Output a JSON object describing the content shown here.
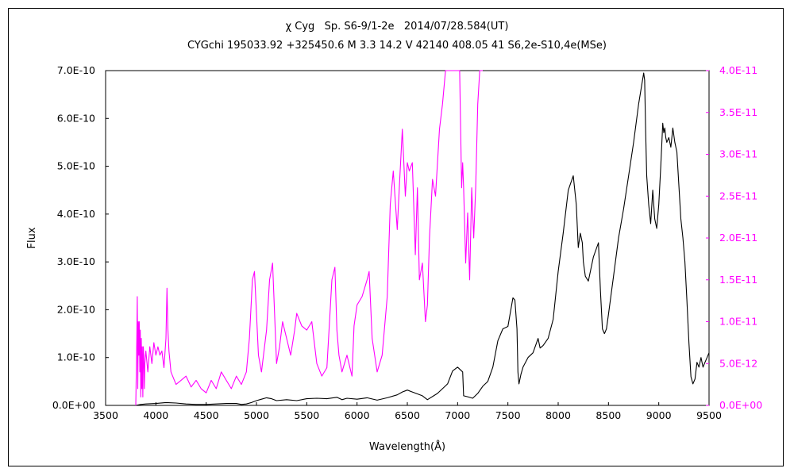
{
  "title_line1": "χ Cyg   Sp. S6-9/1-2e   2014/07/28.584(UT)",
  "title_line2": "CYGchi 195033.92 +325450.6 M 3.3 14.2 V 42140 408.05 41 S6,2e-S10,4e(MSe)",
  "chart_data": {
    "type": "line",
    "xlabel": "Wavelength(Å)",
    "ylabel": "Flux",
    "xlim": [
      3500,
      9500
    ],
    "ylim_left": [
      0,
      7e-10
    ],
    "ylim_right": [
      0,
      4e-11
    ],
    "grid": false,
    "x_ticks": [
      3500,
      4000,
      4500,
      5000,
      5500,
      6000,
      6500,
      7000,
      7500,
      8000,
      8500,
      9000,
      9500
    ],
    "x_tick_labels": [
      "3500",
      "4000",
      "4500",
      "5000",
      "5500",
      "6000",
      "6500",
      "7000",
      "7500",
      "8000",
      "8500",
      "9000",
      "9500"
    ],
    "y_left_ticks": [
      0,
      1e-10,
      2e-10,
      3e-10,
      4e-10,
      5e-10,
      6e-10,
      7e-10
    ],
    "y_left_tick_labels": [
      "0.0E+00",
      "1.0E-10",
      "2.0E-10",
      "3.0E-10",
      "4.0E-10",
      "5.0E-10",
      "6.0E-10",
      "7.0E-10"
    ],
    "y_right_ticks": [
      0,
      5e-12,
      1e-11,
      1.5e-11,
      2e-11,
      2.5e-11,
      3e-11,
      3.5e-11,
      4e-11
    ],
    "y_right_tick_labels": [
      "0.0E+00",
      "5.0E-12",
      "1.0E-11",
      "1.5E-11",
      "2.0E-11",
      "2.5E-11",
      "3.0E-11",
      "3.5E-11",
      "4.0E-11"
    ],
    "series": [
      {
        "axis": "left",
        "color": "#000000",
        "x": [
          3800,
          3850,
          3900,
          4000,
          4100,
          4200,
          4300,
          4400,
          4500,
          4600,
          4700,
          4800,
          4850,
          4900,
          4950,
          5000,
          5050,
          5100,
          5150,
          5200,
          5300,
          5400,
          5500,
          5600,
          5700,
          5800,
          5850,
          5900,
          6000,
          6100,
          6200,
          6300,
          6400,
          6450,
          6500,
          6550,
          6600,
          6650,
          6700,
          6800,
          6900,
          6950,
          7000,
          7050,
          7060,
          7100,
          7150,
          7200,
          7250,
          7300,
          7350,
          7400,
          7450,
          7500,
          7550,
          7570,
          7590,
          7600,
          7610,
          7630,
          7650,
          7700,
          7750,
          7800,
          7820,
          7850,
          7900,
          7950,
          8000,
          8050,
          8100,
          8150,
          8180,
          8200,
          8220,
          8240,
          8250,
          8270,
          8300,
          8350,
          8400,
          8420,
          8440,
          8460,
          8480,
          8500,
          8550,
          8600,
          8650,
          8700,
          8750,
          8800,
          8850,
          8860,
          8870,
          8880,
          8900,
          8920,
          8940,
          8960,
          8980,
          9000,
          9020,
          9040,
          9050,
          9060,
          9070,
          9080,
          9100,
          9120,
          9140,
          9160,
          9180,
          9200,
          9220,
          9240,
          9260,
          9280,
          9300,
          9320,
          9340,
          9360,
          9380,
          9400,
          9420,
          9440,
          9460,
          9480,
          9500
        ],
        "y": [
          0,
          2e-12,
          3e-12,
          4e-12,
          6e-12,
          5e-12,
          3e-12,
          2e-12,
          2e-12,
          3e-12,
          4e-12,
          4e-12,
          2e-12,
          3e-12,
          6e-12,
          1e-11,
          1.3e-11,
          1.6e-11,
          1.4e-11,
          1e-11,
          1.2e-11,
          1e-11,
          1.4e-11,
          1.5e-11,
          1.4e-11,
          1.7e-11,
          1.2e-11,
          1.5e-11,
          1.3e-11,
          1.6e-11,
          1.1e-11,
          1.6e-11,
          2.2e-11,
          2.8e-11,
          3.2e-11,
          2.8e-11,
          2.4e-11,
          2e-11,
          1.2e-11,
          2.5e-11,
          4.5e-11,
          7.2e-11,
          8e-11,
          7e-11,
          2e-11,
          1.8e-11,
          1.5e-11,
          2.5e-11,
          4e-11,
          5e-11,
          8e-11,
          1.35e-10,
          1.6e-10,
          1.65e-10,
          2.25e-10,
          2.2e-10,
          1.6e-10,
          7e-11,
          4.5e-11,
          6.5e-11,
          8e-11,
          1e-10,
          1.1e-10,
          1.4e-10,
          1.2e-10,
          1.25e-10,
          1.4e-10,
          1.8e-10,
          2.8e-10,
          3.6e-10,
          4.5e-10,
          4.8e-10,
          4.2e-10,
          3.3e-10,
          3.6e-10,
          3.4e-10,
          3e-10,
          2.7e-10,
          2.6e-10,
          3.1e-10,
          3.4e-10,
          2.4e-10,
          1.6e-10,
          1.5e-10,
          1.6e-10,
          1.9e-10,
          2.7e-10,
          3.5e-10,
          4.1e-10,
          4.8e-10,
          5.5e-10,
          6.3e-10,
          6.95e-10,
          6.8e-10,
          5.7e-10,
          4.8e-10,
          4.2e-10,
          3.8e-10,
          4.5e-10,
          3.9e-10,
          3.7e-10,
          4.2e-10,
          5e-10,
          5.9e-10,
          5.7e-10,
          5.8e-10,
          5.6e-10,
          5.5e-10,
          5.6e-10,
          5.4e-10,
          5.8e-10,
          5.5e-10,
          5.3e-10,
          4.6e-10,
          3.9e-10,
          3.5e-10,
          3e-10,
          2.2e-10,
          1.3e-10,
          6e-11,
          4.5e-11,
          5.5e-11,
          9e-11,
          8e-11,
          1e-10,
          8e-11,
          9e-11,
          1e-10,
          1.1e-10
        ]
      },
      {
        "axis": "right",
        "color": "#ff00ff",
        "x": [
          3800,
          3810,
          3815,
          3820,
          3825,
          3830,
          3835,
          3840,
          3845,
          3850,
          3855,
          3860,
          3865,
          3870,
          3875,
          3880,
          3885,
          3890,
          3900,
          3920,
          3940,
          3960,
          3980,
          4000,
          4020,
          4040,
          4060,
          4080,
          4100,
          4110,
          4120,
          4130,
          4150,
          4200,
          4250,
          4300,
          4350,
          4400,
          4450,
          4500,
          4550,
          4600,
          4650,
          4700,
          4750,
          4800,
          4850,
          4900,
          4930,
          4960,
          4980,
          5000,
          5020,
          5050,
          5100,
          5130,
          5160,
          5180,
          5200,
          5230,
          5260,
          5300,
          5340,
          5380,
          5400,
          5450,
          5500,
          5550,
          5600,
          5650,
          5700,
          5750,
          5780,
          5800,
          5820,
          5850,
          5900,
          5950,
          5970,
          6000,
          6050,
          6100,
          6120,
          6150,
          6200,
          6250,
          6300,
          6330,
          6360,
          6400,
          6420,
          6450,
          6480,
          6500,
          6520,
          6550,
          6580,
          6600,
          6620,
          6650,
          6680,
          6700,
          6720,
          6750,
          6780,
          6800,
          6820,
          6850,
          6880,
          6900,
          6920,
          6940,
          6960,
          6980,
          7000,
          7020,
          7040,
          7050,
          7060,
          7080,
          7100,
          7120,
          7140,
          7160,
          7180,
          7200,
          7220,
          7240,
          7250
        ],
        "y": [
          0,
          8e-12,
          1.3e-11,
          2e-12,
          1e-11,
          6e-12,
          1e-11,
          4e-12,
          9e-12,
          1e-12,
          8e-12,
          2e-12,
          7e-12,
          1e-12,
          7e-12,
          6e-12,
          2e-12,
          5e-12,
          6.5e-12,
          4e-12,
          7e-12,
          5e-12,
          7.5e-12,
          6e-12,
          7e-12,
          6e-12,
          6.5e-12,
          4.5e-12,
          8e-12,
          1.4e-11,
          9e-12,
          6.5e-12,
          4e-12,
          2.5e-12,
          3e-12,
          3.5e-12,
          2.2e-12,
          3e-12,
          2e-12,
          1.5e-12,
          3e-12,
          2e-12,
          4e-12,
          3e-12,
          2e-12,
          3.5e-12,
          2.5e-12,
          4e-12,
          8e-12,
          1.5e-11,
          1.6e-11,
          1.1e-11,
          6e-12,
          4e-12,
          9e-12,
          1.5e-11,
          1.7e-11,
          1.1e-11,
          5e-12,
          7e-12,
          1e-11,
          8e-12,
          6e-12,
          9e-12,
          1.1e-11,
          9.5e-12,
          9e-12,
          1e-11,
          5e-12,
          3.5e-12,
          4.5e-12,
          1.5e-11,
          1.65e-11,
          9e-12,
          6e-12,
          4e-12,
          6e-12,
          3.5e-12,
          9.5e-12,
          1.2e-11,
          1.3e-11,
          1.5e-11,
          1.6e-11,
          8e-12,
          4e-12,
          6e-12,
          1.3e-11,
          2.4e-11,
          2.8e-11,
          2.1e-11,
          2.6e-11,
          3.3e-11,
          2.5e-11,
          2.9e-11,
          2.8e-11,
          2.9e-11,
          1.8e-11,
          2.6e-11,
          1.5e-11,
          1.7e-11,
          1e-11,
          1.2e-11,
          2e-11,
          2.7e-11,
          2.5e-11,
          2.9e-11,
          3.3e-11,
          3.6e-11,
          4e-11,
          4e-11,
          4e-11,
          4e-11,
          4e-11,
          4e-11,
          4e-11,
          4e-11,
          2.6e-11,
          2.9e-11,
          2.6e-11,
          1.7e-11,
          2.3e-11,
          1.5e-11,
          2.6e-11,
          2e-11,
          2.6e-11,
          3.6e-11,
          4e-11,
          4e-11,
          4e-11
        ]
      }
    ]
  }
}
